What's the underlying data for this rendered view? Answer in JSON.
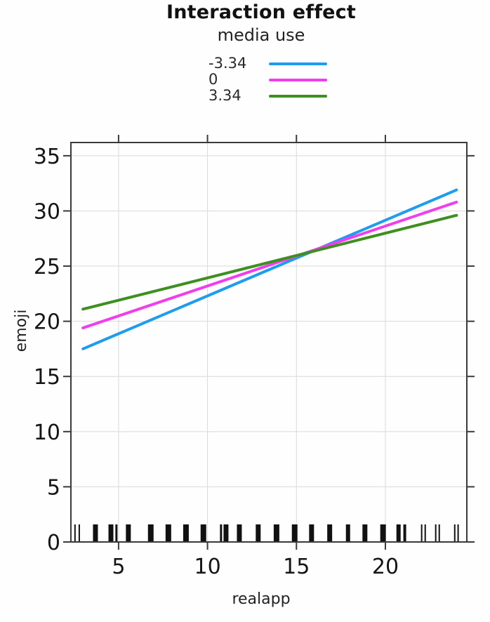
{
  "title": "Interaction effect",
  "subtitle": "media use",
  "legend": {
    "title": "media use",
    "position": "top",
    "entries": [
      {
        "label": "-3.34",
        "color": "#1E9CEF"
      },
      {
        "label": "0",
        "color": "#F13DEE"
      },
      {
        "label": "3.34",
        "color": "#3D8F1F"
      }
    ]
  },
  "chart_data": {
    "type": "line",
    "title": "Interaction effect",
    "subtitle": "media use",
    "xlabel": "realapp",
    "ylabel": "emoji",
    "xlim": [
      2.32,
      24.58
    ],
    "ylim": [
      0,
      36.2
    ],
    "x_ticks": [
      5,
      10,
      15,
      20
    ],
    "y_ticks": [
      0,
      5,
      10,
      15,
      20,
      25,
      30,
      35
    ],
    "grid": true,
    "grid_color": "#d9d9d9",
    "box_color": "#3a3a3a",
    "legend_position": "top",
    "series": [
      {
        "name": "-3.34",
        "color": "#1E9CEF",
        "x": [
          3,
          24
        ],
        "y": [
          17.5,
          31.9
        ]
      },
      {
        "name": "0",
        "color": "#F13DEE",
        "x": [
          3,
          24
        ],
        "y": [
          19.4,
          30.8
        ]
      },
      {
        "name": "3.34",
        "color": "#3D8F1F",
        "x": [
          3,
          24
        ],
        "y": [
          21.1,
          29.6
        ]
      }
    ],
    "rug": {
      "color": "#111111",
      "values": [
        {
          "x": 2.55,
          "w": 2
        },
        {
          "x": 2.79,
          "w": 2
        },
        {
          "x": 3.7,
          "w": 7
        },
        {
          "x": 4.57,
          "w": 7
        },
        {
          "x": 4.88,
          "w": 3
        },
        {
          "x": 5.55,
          "w": 7
        },
        {
          "x": 6.81,
          "w": 8
        },
        {
          "x": 7.8,
          "w": 8
        },
        {
          "x": 8.79,
          "w": 8
        },
        {
          "x": 9.77,
          "w": 8
        },
        {
          "x": 10.76,
          "w": 3
        },
        {
          "x": 11.04,
          "w": 7
        },
        {
          "x": 11.79,
          "w": 7
        },
        {
          "x": 12.85,
          "w": 7
        },
        {
          "x": 13.88,
          "w": 8
        },
        {
          "x": 14.9,
          "w": 8
        },
        {
          "x": 15.85,
          "w": 7
        },
        {
          "x": 16.87,
          "w": 7
        },
        {
          "x": 17.9,
          "w": 6
        },
        {
          "x": 18.85,
          "w": 7
        },
        {
          "x": 19.87,
          "w": 8
        },
        {
          "x": 20.74,
          "w": 6
        },
        {
          "x": 21.09,
          "w": 4
        },
        {
          "x": 22.04,
          "w": 2
        },
        {
          "x": 22.24,
          "w": 2
        },
        {
          "x": 22.83,
          "w": 2
        },
        {
          "x": 23.03,
          "w": 2
        },
        {
          "x": 23.9,
          "w": 2
        },
        {
          "x": 24.09,
          "w": 2
        }
      ]
    }
  }
}
